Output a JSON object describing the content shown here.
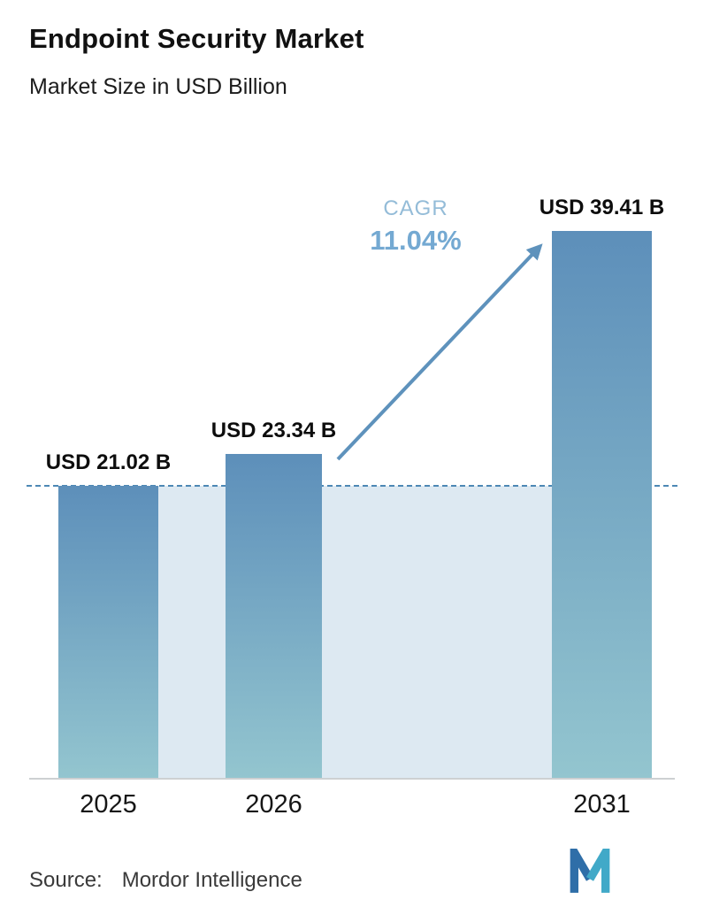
{
  "header": {
    "title": "Endpoint Security Market",
    "subtitle": "Market Size in USD Billion"
  },
  "chart_data": {
    "type": "bar",
    "title": "Endpoint Security Market",
    "subtitle": "Market Size in USD Billion",
    "categories": [
      "2025",
      "2026",
      "2031"
    ],
    "values": [
      21.02,
      23.34,
      39.41
    ],
    "value_labels": [
      "USD 21.02 B",
      "USD 23.34 B",
      "USD 39.41 B"
    ],
    "unit": "USD Billion",
    "ylim": [
      0,
      39.41
    ],
    "grid": "off",
    "baseline": {
      "style": "dashed",
      "at_value": 21.02
    },
    "annotations": {
      "cagr_label": "CAGR",
      "cagr_value": "11.04%"
    },
    "colors": {
      "bar_gradient_top": "#5d8fba",
      "bar_gradient_bottom": "#93c5cf",
      "band_fill": "#dde9f2",
      "dashed_line": "#4d88b5",
      "arrow": "#5e92bc",
      "cagr_text": "#74a9d2",
      "logo_blue": "#2f6ea8",
      "logo_teal": "#41a9c8"
    }
  },
  "footer": {
    "source_label": "Source:",
    "source_value": "Mordor Intelligence"
  }
}
